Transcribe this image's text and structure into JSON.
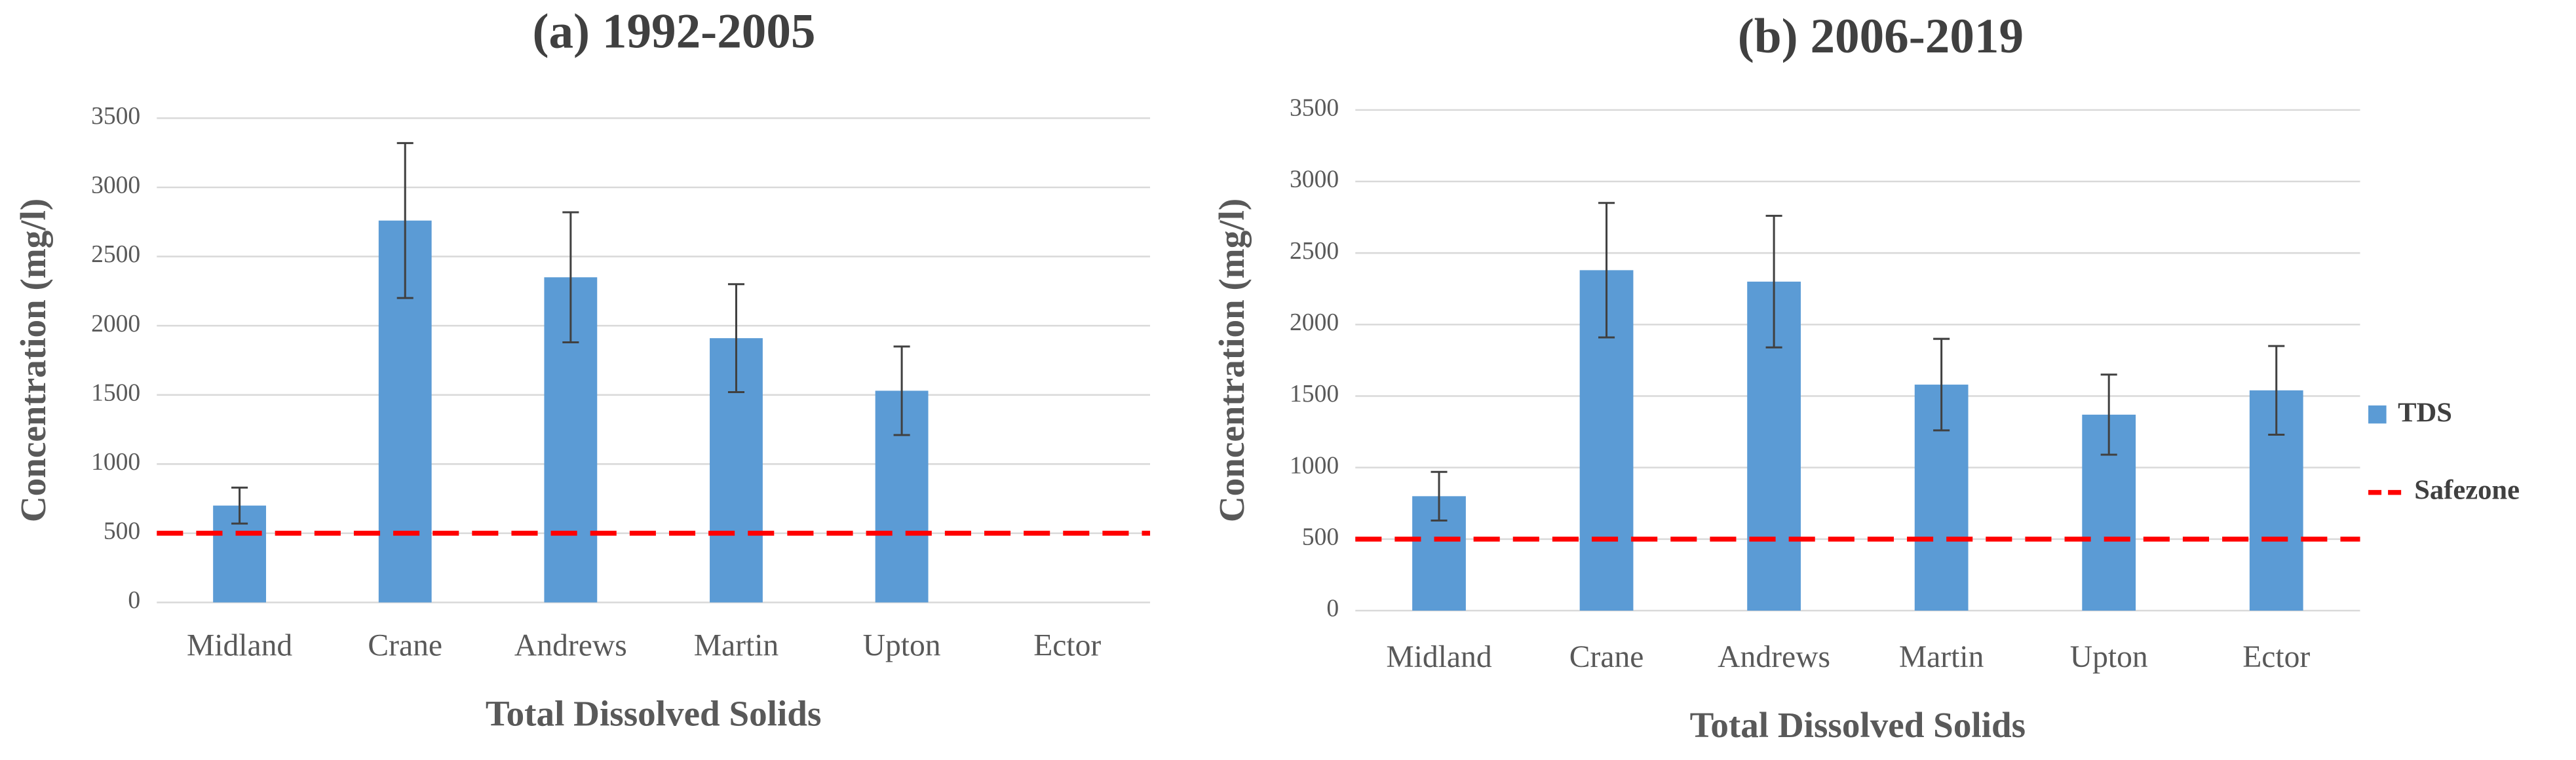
{
  "chart_data": [
    {
      "type": "bar",
      "title": "(a) 1992-2005",
      "x_label": "Total Dissolved Solids",
      "y_label": "Concentration (mg/l)",
      "categories": [
        "Midland",
        "Crane",
        "Andrews",
        "Martin",
        "Upton",
        "Ector"
      ],
      "series": [
        {
          "name": "TDS",
          "color": "#5b9bd5",
          "values": [
            700,
            2760,
            2350,
            1910,
            1530,
            null
          ],
          "errors": [
            130,
            560,
            470,
            390,
            320,
            null
          ]
        }
      ],
      "reference_lines": [
        {
          "name": "Safezone",
          "color": "#ff0000",
          "value": 500
        }
      ],
      "ylim": [
        0,
        3500
      ],
      "yticks": [
        0,
        500,
        1000,
        1500,
        2000,
        2500,
        3000,
        3500
      ],
      "grid": true,
      "legend": false
    },
    {
      "type": "bar",
      "title": "(b) 2006-2019",
      "x_label": "Total Dissolved Solids",
      "y_label": "Concentration (mg/l)",
      "categories": [
        "Midland",
        "Crane",
        "Andrews",
        "Martin",
        "Upton",
        "Ector"
      ],
      "series": [
        {
          "name": "TDS",
          "color": "#5b9bd5",
          "values": [
            800,
            2380,
            2300,
            1580,
            1370,
            1540
          ],
          "errors": [
            170,
            470,
            460,
            320,
            280,
            310
          ]
        }
      ],
      "reference_lines": [
        {
          "name": "Safezone",
          "color": "#ff0000",
          "value": 500
        }
      ],
      "ylim": [
        0,
        3500
      ],
      "yticks": [
        0,
        500,
        1000,
        1500,
        2000,
        2500,
        3000,
        3500
      ],
      "grid": true,
      "legend": true,
      "legend_position": "right"
    }
  ]
}
